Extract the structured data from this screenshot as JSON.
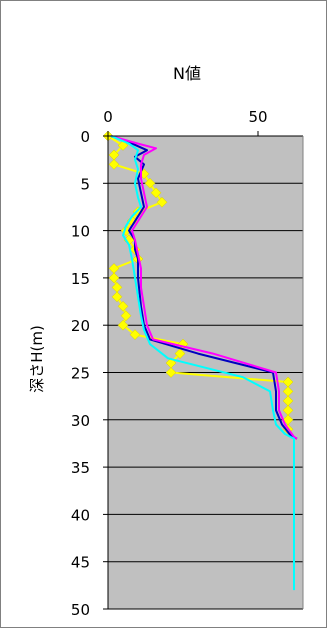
{
  "chart_data": {
    "type": "line",
    "title": "N値",
    "xlabel": "",
    "ylabel": "深さH(m)",
    "xlim": [
      0,
      65
    ],
    "ylim": [
      0,
      50
    ],
    "x_ticks": [
      "0",
      "50"
    ],
    "y_ticks": [
      "0",
      "5",
      "10",
      "15",
      "20",
      "25",
      "30",
      "35",
      "40",
      "45",
      "50"
    ],
    "y_reversed": true,
    "grid": "horizontal",
    "plot_background": "#c0c0c0",
    "series": [
      {
        "color": "#ffff00",
        "marker": "diamond",
        "points": [
          [
            0,
            0
          ],
          [
            5,
            1
          ],
          [
            2,
            2
          ],
          [
            2,
            3
          ],
          [
            12,
            4
          ],
          [
            14,
            5
          ],
          [
            16,
            6
          ],
          [
            18,
            7
          ],
          [
            10,
            8
          ],
          [
            8,
            9
          ],
          [
            6,
            10
          ],
          [
            7,
            11
          ],
          [
            9,
            12
          ],
          [
            10,
            13
          ],
          [
            2,
            14
          ],
          [
            2,
            15
          ],
          [
            3,
            16
          ],
          [
            3,
            17
          ],
          [
            5,
            18
          ],
          [
            6,
            19
          ],
          [
            5,
            20
          ],
          [
            9,
            21
          ],
          [
            25,
            22
          ],
          [
            24,
            23
          ],
          [
            21,
            24
          ],
          [
            21,
            25
          ],
          [
            60,
            26
          ],
          [
            60,
            27
          ],
          [
            60,
            28
          ],
          [
            60,
            29
          ],
          [
            60,
            30
          ],
          [
            60,
            31
          ]
        ]
      },
      {
        "color": "#0000c0",
        "marker": "none",
        "points": [
          [
            1,
            0
          ],
          [
            8,
            0.8
          ],
          [
            13,
            1.5
          ],
          [
            9,
            2.2
          ],
          [
            12,
            3
          ],
          [
            10,
            4.5
          ],
          [
            11,
            6
          ],
          [
            12,
            7.5
          ],
          [
            9,
            9
          ],
          [
            7,
            10
          ],
          [
            9,
            11
          ],
          [
            9,
            12
          ],
          [
            10,
            13
          ],
          [
            10,
            15
          ],
          [
            11,
            18
          ],
          [
            12,
            20
          ],
          [
            14,
            21.5
          ],
          [
            30,
            23
          ],
          [
            55,
            25
          ],
          [
            56,
            27
          ],
          [
            56,
            29
          ],
          [
            58,
            30.5
          ],
          [
            61,
            31.7
          ],
          [
            63,
            32
          ]
        ]
      },
      {
        "color": "#ff00ff",
        "marker": "none",
        "points": [
          [
            1,
            0
          ],
          [
            10,
            0.8
          ],
          [
            16,
            1.3
          ],
          [
            12,
            2
          ],
          [
            11,
            3
          ],
          [
            11,
            4.5
          ],
          [
            12,
            6
          ],
          [
            13,
            7.5
          ],
          [
            10,
            9
          ],
          [
            8,
            10
          ],
          [
            9,
            11
          ],
          [
            10,
            12.5
          ],
          [
            11,
            14
          ],
          [
            11,
            16
          ],
          [
            12,
            18
          ],
          [
            13,
            20
          ],
          [
            15,
            21.5
          ],
          [
            35,
            23
          ],
          [
            56,
            25
          ],
          [
            57,
            27
          ],
          [
            57,
            29
          ],
          [
            59,
            30.5
          ],
          [
            62,
            31.8
          ],
          [
            63,
            32
          ]
        ]
      },
      {
        "color": "#00ffff",
        "marker": "none",
        "points": [
          [
            1,
            0
          ],
          [
            7,
            0.8
          ],
          [
            10,
            1.5
          ],
          [
            9,
            2.5
          ],
          [
            10,
            3.5
          ],
          [
            9,
            5
          ],
          [
            10,
            6.5
          ],
          [
            11,
            7.5
          ],
          [
            8,
            8.5
          ],
          [
            6,
            9.5
          ],
          [
            5,
            10.5
          ],
          [
            7,
            11.5
          ],
          [
            8,
            13
          ],
          [
            9,
            15
          ],
          [
            10,
            17
          ],
          [
            11,
            19
          ],
          [
            12,
            20.5
          ],
          [
            14,
            22
          ],
          [
            20,
            23.5
          ],
          [
            45,
            25.5
          ],
          [
            54,
            27
          ],
          [
            55,
            29
          ],
          [
            56,
            30.5
          ],
          [
            59,
            31.5
          ],
          [
            62,
            32
          ],
          [
            62,
            48
          ]
        ]
      }
    ]
  }
}
